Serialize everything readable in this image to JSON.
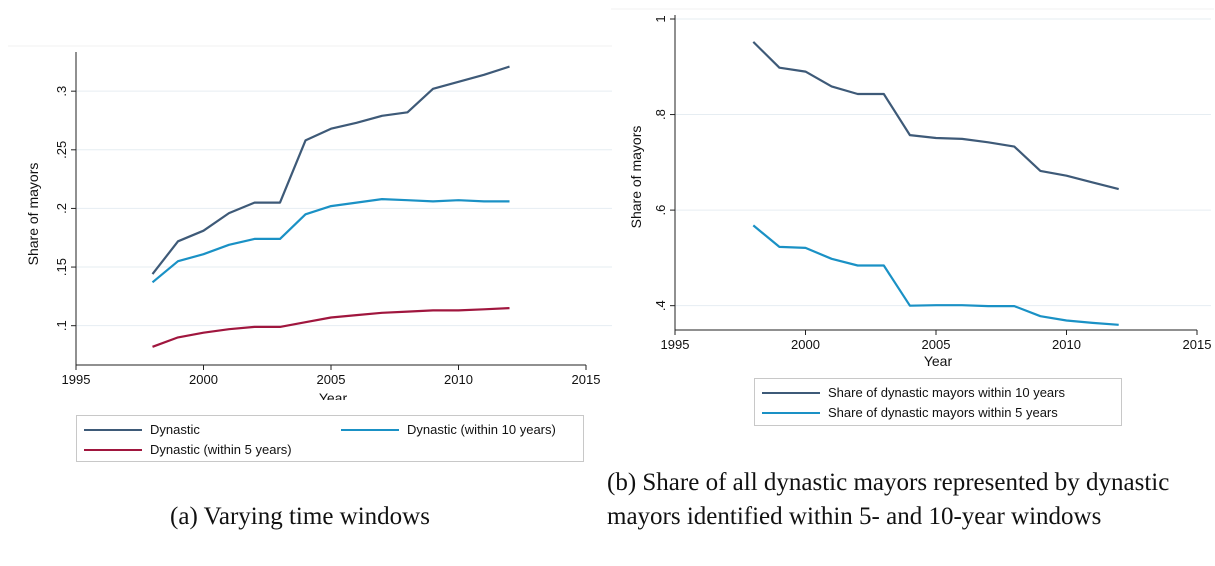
{
  "chart_data": [
    {
      "type": "line",
      "title": "",
      "xlabel": "Year",
      "ylabel": "Share of mayors",
      "xlim": [
        1995,
        2015
      ],
      "ylim": [
        0.075,
        0.33
      ],
      "xticks": [
        1995,
        2000,
        2005,
        2010,
        2015
      ],
      "xtick_labels": [
        "1995",
        "2000",
        "2005",
        "2010",
        "2015"
      ],
      "yticks": [
        0.1,
        0.15,
        0.2,
        0.25,
        0.3
      ],
      "ytick_labels": [
        ".1",
        ".15",
        ".2",
        ".25",
        ".3"
      ],
      "grid": true,
      "legend": "bottom",
      "x": [
        1998,
        1999,
        2000,
        2001,
        2002,
        2003,
        2004,
        2005,
        2006,
        2007,
        2008,
        2009,
        2010,
        2011,
        2012
      ],
      "series": [
        {
          "name": "Dynastic",
          "color": "#3e5a78",
          "values": [
            0.144,
            0.172,
            0.181,
            0.196,
            0.205,
            0.205,
            0.258,
            0.268,
            0.273,
            0.279,
            0.282,
            0.302,
            0.308,
            0.314,
            0.321
          ]
        },
        {
          "name": "Dynastic (within 10 years)",
          "color": "#1a91c5",
          "values": [
            0.137,
            0.155,
            0.161,
            0.169,
            0.174,
            0.174,
            0.195,
            0.202,
            0.205,
            0.208,
            0.207,
            0.206,
            0.207,
            0.206,
            0.206
          ]
        },
        {
          "name": "Dynastic (within 5 years)",
          "color": "#a0163e",
          "values": [
            0.082,
            0.09,
            0.094,
            0.097,
            0.099,
            0.099,
            0.103,
            0.107,
            0.109,
            0.111,
            0.112,
            0.113,
            0.113,
            0.114,
            0.115
          ]
        }
      ]
    },
    {
      "type": "line",
      "title": "",
      "xlabel": "Year",
      "ylabel": "Share of mayors",
      "xlim": [
        1995,
        2015
      ],
      "ylim": [
        0.37,
        1.0
      ],
      "xticks": [
        1995,
        2000,
        2005,
        2010,
        2015
      ],
      "xtick_labels": [
        "1995",
        "2000",
        "2005",
        "2010",
        "2015"
      ],
      "yticks": [
        0.4,
        0.6,
        0.8,
        1.0
      ],
      "ytick_labels": [
        ".4",
        ".6",
        ".8",
        "1"
      ],
      "grid": true,
      "legend": "bottom",
      "x": [
        1998,
        1999,
        2000,
        2001,
        2002,
        2003,
        2004,
        2005,
        2006,
        2007,
        2008,
        2009,
        2010,
        2011,
        2012
      ],
      "series": [
        {
          "name": "Share of dynastic mayors within 10 years",
          "color": "#3e5a78",
          "values": [
            0.952,
            0.898,
            0.89,
            0.859,
            0.843,
            0.843,
            0.757,
            0.751,
            0.749,
            0.742,
            0.733,
            0.682,
            0.672,
            0.658,
            0.644
          ]
        },
        {
          "name": "Share of dynastic mayors within 5 years",
          "color": "#1a91c5",
          "values": [
            0.568,
            0.523,
            0.521,
            0.498,
            0.484,
            0.484,
            0.4,
            0.401,
            0.401,
            0.399,
            0.399,
            0.378,
            0.369,
            0.364,
            0.36
          ]
        }
      ]
    }
  ],
  "captions": {
    "a": "(a) Varying time windows",
    "b": "(b) Share of all dynastic mayors represented by dynastic mayors identified within 5- and 10-year windows"
  }
}
